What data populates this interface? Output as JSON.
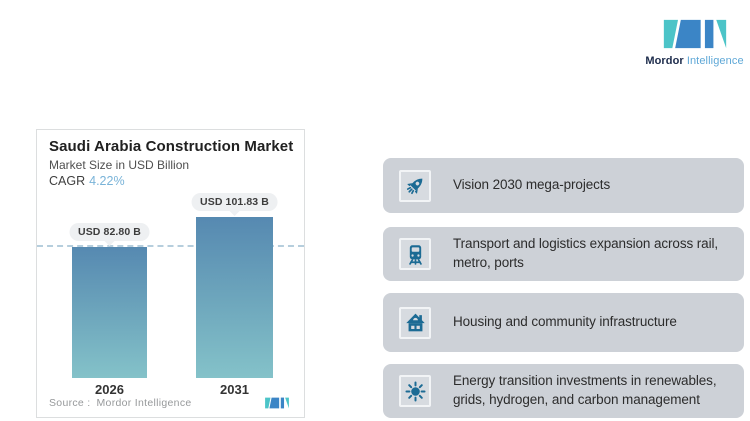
{
  "brand": {
    "name_bold": "Mordor",
    "name_light": "Intelligence",
    "colors": {
      "teal": "#4cc4c8",
      "blue": "#3b85c6",
      "navy": "#1c2b4b"
    }
  },
  "chart_card": {
    "title": "Saudi Arabia Construction Market",
    "subtitle": "Market Size in USD Billion",
    "cagr_label": "CAGR",
    "cagr_value": "4.22%",
    "source_label": "Source :",
    "source_value": "Mordor Intelligence",
    "bars": [
      {
        "year": "2026",
        "label": "USD 82.80 B"
      },
      {
        "year": "2031",
        "label": "USD 101.83 B"
      }
    ]
  },
  "chart_data": {
    "type": "bar",
    "title": "Saudi Arabia Construction Market",
    "subtitle": "Market Size in USD Billion",
    "cagr_percent": 4.22,
    "unit": "USD Billion",
    "categories": [
      "2026",
      "2031"
    ],
    "values": [
      82.8,
      101.83
    ],
    "data_labels": [
      "USD 82.80 B",
      "USD 101.83 B"
    ],
    "reference_line_at": 82.8,
    "ylim": [
      0,
      110
    ],
    "grid": false,
    "legend": false,
    "bar_gradient": [
      "#5689b1",
      "#84c2c9"
    ],
    "reference_line_color": "#b6cedd"
  },
  "drivers": [
    {
      "icon": "rocket-icon",
      "text": "Vision 2030 mega-projects"
    },
    {
      "icon": "train-icon",
      "text": "Transport and logistics expansion across rail, metro, ports"
    },
    {
      "icon": "house-icon",
      "text": "Housing and community infrastructure"
    },
    {
      "icon": "sun-icon",
      "text": "Energy transition investments in renewables, grids, hydrogen, and carbon management"
    }
  ]
}
